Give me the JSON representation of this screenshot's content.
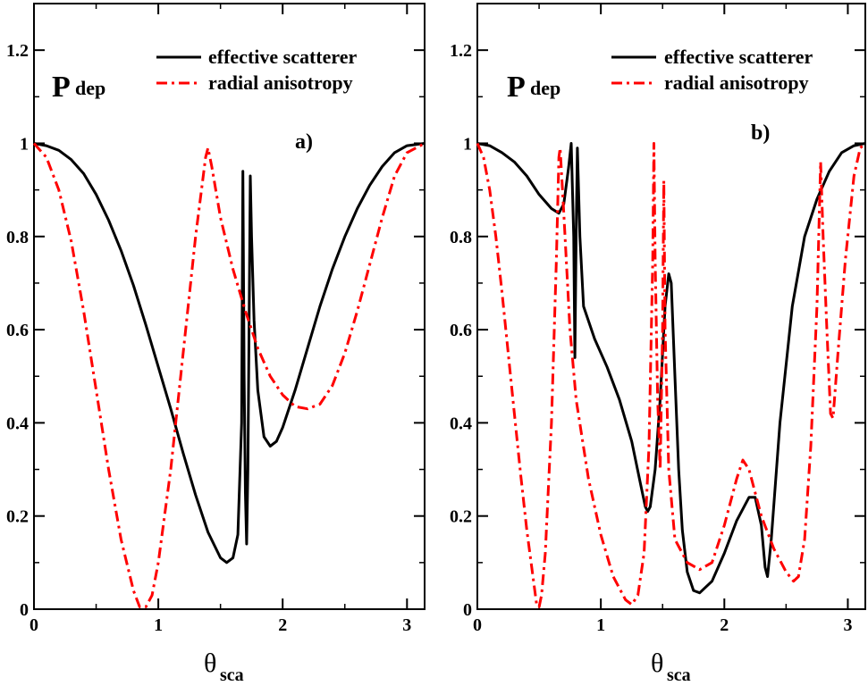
{
  "figure": {
    "ylabel_main": "P",
    "ylabel_sub": "dep",
    "xlabel_main": "θ",
    "xlabel_sub": "sca"
  },
  "chart_data": [
    {
      "type": "line",
      "panel": "a)",
      "xlim": [
        0,
        3.1416
      ],
      "ylim": [
        0,
        1.3
      ],
      "xticks": [
        0,
        1,
        2,
        3
      ],
      "yticks": [
        0,
        0.2,
        0.4,
        0.6,
        0.8,
        1,
        1.2
      ],
      "ytick_labels": [
        "0",
        "0.2",
        "0.4",
        "0.6",
        "0.8",
        "1",
        "1.2"
      ],
      "xtick_labels": [
        "0",
        "1",
        "2",
        "3"
      ],
      "legend": [
        "effective scatterer",
        "radial anisotropy"
      ],
      "series": [
        {
          "name": "effective scatterer",
          "color": "#000000",
          "dash": "solid",
          "points": [
            [
              0,
              1
            ],
            [
              0.1,
              0.995
            ],
            [
              0.2,
              0.985
            ],
            [
              0.3,
              0.965
            ],
            [
              0.4,
              0.935
            ],
            [
              0.5,
              0.89
            ],
            [
              0.6,
              0.835
            ],
            [
              0.7,
              0.77
            ],
            [
              0.8,
              0.695
            ],
            [
              0.9,
              0.61
            ],
            [
              1.0,
              0.52
            ],
            [
              1.1,
              0.43
            ],
            [
              1.2,
              0.335
            ],
            [
              1.3,
              0.245
            ],
            [
              1.4,
              0.165
            ],
            [
              1.5,
              0.11
            ],
            [
              1.55,
              0.1
            ],
            [
              1.6,
              0.11
            ],
            [
              1.64,
              0.16
            ],
            [
              1.67,
              0.4
            ],
            [
              1.68,
              0.94
            ],
            [
              1.69,
              0.5
            ],
            [
              1.7,
              0.25
            ],
            [
              1.71,
              0.14
            ],
            [
              1.72,
              0.3
            ],
            [
              1.73,
              0.6
            ],
            [
              1.74,
              0.93
            ],
            [
              1.75,
              0.8
            ],
            [
              1.77,
              0.62
            ],
            [
              1.8,
              0.47
            ],
            [
              1.85,
              0.37
            ],
            [
              1.9,
              0.35
            ],
            [
              1.95,
              0.36
            ],
            [
              2.0,
              0.39
            ],
            [
              2.1,
              0.47
            ],
            [
              2.2,
              0.56
            ],
            [
              2.3,
              0.65
            ],
            [
              2.4,
              0.73
            ],
            [
              2.5,
              0.8
            ],
            [
              2.6,
              0.86
            ],
            [
              2.7,
              0.91
            ],
            [
              2.8,
              0.95
            ],
            [
              2.9,
              0.98
            ],
            [
              3.0,
              0.995
            ],
            [
              3.1416,
              1
            ]
          ]
        },
        {
          "name": "radial anisotropy",
          "color": "#ff0000",
          "dash": "dashdot",
          "points": [
            [
              0,
              1
            ],
            [
              0.1,
              0.97
            ],
            [
              0.2,
              0.9
            ],
            [
              0.3,
              0.79
            ],
            [
              0.4,
              0.64
            ],
            [
              0.5,
              0.47
            ],
            [
              0.6,
              0.3
            ],
            [
              0.7,
              0.15
            ],
            [
              0.8,
              0.04
            ],
            [
              0.85,
              0.005
            ],
            [
              0.9,
              0.005
            ],
            [
              0.95,
              0.03
            ],
            [
              1.0,
              0.1
            ],
            [
              1.1,
              0.3
            ],
            [
              1.2,
              0.55
            ],
            [
              1.3,
              0.8
            ],
            [
              1.38,
              0.97
            ],
            [
              1.4,
              0.99
            ],
            [
              1.43,
              0.95
            ],
            [
              1.5,
              0.84
            ],
            [
              1.6,
              0.73
            ],
            [
              1.7,
              0.64
            ],
            [
              1.8,
              0.56
            ],
            [
              1.9,
              0.5
            ],
            [
              2.0,
              0.46
            ],
            [
              2.1,
              0.435
            ],
            [
              2.2,
              0.43
            ],
            [
              2.3,
              0.44
            ],
            [
              2.4,
              0.48
            ],
            [
              2.5,
              0.55
            ],
            [
              2.6,
              0.64
            ],
            [
              2.7,
              0.74
            ],
            [
              2.8,
              0.84
            ],
            [
              2.9,
              0.93
            ],
            [
              3.0,
              0.98
            ],
            [
              3.1416,
              1
            ]
          ]
        }
      ]
    },
    {
      "type": "line",
      "panel": "b)",
      "xlim": [
        0,
        3.1416
      ],
      "ylim": [
        0,
        1.3
      ],
      "xticks": [
        0,
        1,
        2,
        3
      ],
      "yticks": [
        0,
        0.2,
        0.4,
        0.6,
        0.8,
        1,
        1.2
      ],
      "ytick_labels": [
        "0",
        "0.2",
        "0.4",
        "0.6",
        "0.8",
        "1",
        "1.2"
      ],
      "xtick_labels": [
        "0",
        "1",
        "2",
        "3"
      ],
      "legend": [
        "effective scatterer",
        "radial anisotropy"
      ],
      "series": [
        {
          "name": "effective scatterer",
          "color": "#000000",
          "dash": "solid",
          "points": [
            [
              0,
              1
            ],
            [
              0.1,
              0.995
            ],
            [
              0.2,
              0.98
            ],
            [
              0.3,
              0.96
            ],
            [
              0.4,
              0.93
            ],
            [
              0.5,
              0.89
            ],
            [
              0.6,
              0.86
            ],
            [
              0.66,
              0.85
            ],
            [
              0.7,
              0.87
            ],
            [
              0.74,
              0.95
            ],
            [
              0.76,
              1.0
            ],
            [
              0.78,
              0.8
            ],
            [
              0.79,
              0.54
            ],
            [
              0.8,
              0.8
            ],
            [
              0.81,
              0.99
            ],
            [
              0.83,
              0.8
            ],
            [
              0.86,
              0.65
            ],
            [
              0.95,
              0.58
            ],
            [
              1.05,
              0.52
            ],
            [
              1.15,
              0.45
            ],
            [
              1.25,
              0.36
            ],
            [
              1.32,
              0.27
            ],
            [
              1.36,
              0.22
            ],
            [
              1.38,
              0.21
            ],
            [
              1.4,
              0.22
            ],
            [
              1.44,
              0.3
            ],
            [
              1.48,
              0.45
            ],
            [
              1.52,
              0.65
            ],
            [
              1.55,
              0.72
            ],
            [
              1.57,
              0.7
            ],
            [
              1.6,
              0.5
            ],
            [
              1.63,
              0.3
            ],
            [
              1.66,
              0.17
            ],
            [
              1.7,
              0.08
            ],
            [
              1.75,
              0.04
            ],
            [
              1.8,
              0.035
            ],
            [
              1.9,
              0.06
            ],
            [
              2.0,
              0.12
            ],
            [
              2.1,
              0.19
            ],
            [
              2.2,
              0.24
            ],
            [
              2.25,
              0.24
            ],
            [
              2.3,
              0.18
            ],
            [
              2.33,
              0.09
            ],
            [
              2.35,
              0.07
            ],
            [
              2.38,
              0.15
            ],
            [
              2.45,
              0.4
            ],
            [
              2.55,
              0.65
            ],
            [
              2.65,
              0.8
            ],
            [
              2.75,
              0.88
            ],
            [
              2.85,
              0.94
            ],
            [
              2.95,
              0.98
            ],
            [
              3.05,
              0.995
            ],
            [
              3.1416,
              1
            ]
          ]
        },
        {
          "name": "radial anisotropy",
          "color": "#ff0000",
          "dash": "dashdot",
          "points": [
            [
              0,
              1
            ],
            [
              0.05,
              0.97
            ],
            [
              0.1,
              0.9
            ],
            [
              0.15,
              0.8
            ],
            [
              0.2,
              0.68
            ],
            [
              0.25,
              0.55
            ],
            [
              0.3,
              0.42
            ],
            [
              0.35,
              0.29
            ],
            [
              0.4,
              0.17
            ],
            [
              0.45,
              0.07
            ],
            [
              0.48,
              0.01
            ],
            [
              0.5,
              0.005
            ],
            [
              0.52,
              0.03
            ],
            [
              0.55,
              0.12
            ],
            [
              0.6,
              0.4
            ],
            [
              0.64,
              0.75
            ],
            [
              0.66,
              0.97
            ],
            [
              0.67,
              0.99
            ],
            [
              0.7,
              0.85
            ],
            [
              0.75,
              0.6
            ],
            [
              0.8,
              0.45
            ],
            [
              0.9,
              0.28
            ],
            [
              1.0,
              0.16
            ],
            [
              1.1,
              0.07
            ],
            [
              1.2,
              0.02
            ],
            [
              1.25,
              0.01
            ],
            [
              1.3,
              0.03
            ],
            [
              1.35,
              0.12
            ],
            [
              1.39,
              0.35
            ],
            [
              1.42,
              0.75
            ],
            [
              1.43,
              1.0
            ],
            [
              1.44,
              0.75
            ],
            [
              1.46,
              0.45
            ],
            [
              1.48,
              0.3
            ],
            [
              1.5,
              0.6
            ],
            [
              1.51,
              0.92
            ],
            [
              1.52,
              0.6
            ],
            [
              1.55,
              0.3
            ],
            [
              1.6,
              0.15
            ],
            [
              1.7,
              0.1
            ],
            [
              1.8,
              0.085
            ],
            [
              1.9,
              0.1
            ],
            [
              2.0,
              0.18
            ],
            [
              2.1,
              0.28
            ],
            [
              2.15,
              0.32
            ],
            [
              2.2,
              0.3
            ],
            [
              2.3,
              0.2
            ],
            [
              2.4,
              0.13
            ],
            [
              2.5,
              0.08
            ],
            [
              2.56,
              0.06
            ],
            [
              2.6,
              0.07
            ],
            [
              2.65,
              0.15
            ],
            [
              2.7,
              0.35
            ],
            [
              2.75,
              0.65
            ],
            [
              2.78,
              0.96
            ],
            [
              2.8,
              0.8
            ],
            [
              2.83,
              0.6
            ],
            [
              2.86,
              0.42
            ],
            [
              2.88,
              0.41
            ],
            [
              2.92,
              0.55
            ],
            [
              2.98,
              0.75
            ],
            [
              3.05,
              0.93
            ],
            [
              3.1,
              0.99
            ],
            [
              3.1416,
              1
            ]
          ]
        }
      ]
    }
  ]
}
